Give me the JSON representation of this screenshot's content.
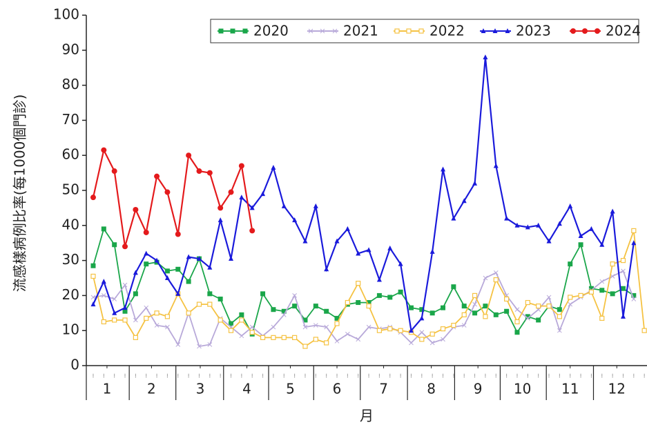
{
  "chart_data": {
    "type": "line",
    "y_label": "流感樣病例比率(每1000個門診)",
    "x_label": "月",
    "x": [
      1,
      2,
      3,
      4,
      5,
      6,
      7,
      8,
      9,
      10,
      11,
      12,
      13,
      14,
      15,
      16,
      17,
      18,
      19,
      20,
      21,
      22,
      23,
      24,
      25,
      26,
      27,
      28,
      29,
      30,
      31,
      32,
      33,
      34,
      35,
      36,
      37,
      38,
      39,
      40,
      41,
      42,
      43,
      44,
      45,
      46,
      47,
      48,
      49,
      50,
      51,
      52,
      53
    ],
    "xlim": [
      0.35,
      53.25
    ],
    "xticks": [
      {
        "value": 2.3,
        "label": "1"
      },
      {
        "value": 6.5,
        "label": "2"
      },
      {
        "value": 11.1,
        "label": "3"
      },
      {
        "value": 15.5,
        "label": "4"
      },
      {
        "value": 19.6,
        "label": "5"
      },
      {
        "value": 24.0,
        "label": "6"
      },
      {
        "value": 28.4,
        "label": "7"
      },
      {
        "value": 32.9,
        "label": "8"
      },
      {
        "value": 37.3,
        "label": "9"
      },
      {
        "value": 41.5,
        "label": "10"
      },
      {
        "value": 46.0,
        "label": "11"
      },
      {
        "value": 50.4,
        "label": "12"
      }
    ],
    "ylim": [
      0,
      100
    ],
    "yticks": [
      0,
      10,
      20,
      30,
      40,
      50,
      60,
      70,
      80,
      90,
      100
    ],
    "legend": "top-right",
    "series": [
      {
        "name": "2020",
        "color": "#1aa64a",
        "marker": "square",
        "values": [
          28.5,
          39,
          34.5,
          15.5,
          20.5,
          29,
          29.5,
          27,
          27.5,
          24,
          30.5,
          20.5,
          19,
          12,
          14.5,
          9,
          20.5,
          16,
          15.5,
          17,
          13,
          17,
          15.5,
          13.5,
          17.5,
          18,
          18,
          20,
          19.5,
          21,
          16.5,
          16,
          15,
          16.5,
          22.5,
          17,
          15,
          17,
          14.5,
          15.5,
          9.5,
          14,
          13,
          17,
          16,
          29,
          34.5,
          22,
          21.5,
          20.5,
          22,
          20,
          null
        ]
      },
      {
        "name": "2021",
        "color": "#b8a9d9",
        "marker": "cross",
        "values": [
          19.5,
          20,
          19,
          23,
          13,
          16.5,
          11.5,
          11,
          6,
          15,
          5.5,
          6,
          13.5,
          11,
          8.5,
          11,
          8.5,
          11,
          14.5,
          20,
          11,
          11.5,
          11,
          7,
          9,
          7.5,
          11,
          10.5,
          11,
          9.5,
          6.5,
          9.5,
          6.5,
          7.5,
          11,
          11.5,
          17.5,
          25,
          26.5,
          20,
          16,
          13.5,
          16,
          19.5,
          10,
          17.5,
          19.5,
          21.5,
          24,
          25.5,
          27,
          19,
          null
        ]
      },
      {
        "name": "2022",
        "color": "#f5c242",
        "marker": "open-square",
        "values": [
          25.5,
          12.5,
          13,
          13,
          8,
          13.5,
          15,
          14,
          20.5,
          15,
          17.5,
          17.5,
          13,
          10,
          13,
          9.5,
          8,
          8,
          8,
          8,
          5.5,
          7.5,
          6.5,
          12,
          18,
          23.5,
          17,
          10,
          10.5,
          10,
          9.5,
          7.5,
          9,
          10.5,
          11.5,
          14.5,
          20,
          14,
          24.5,
          19,
          12.5,
          18,
          17,
          17,
          14,
          19.5,
          20,
          21,
          13.5,
          29,
          30,
          38.5,
          10
        ]
      },
      {
        "name": "2023",
        "color": "#1a1adb",
        "marker": "triangle",
        "values": [
          17.5,
          24,
          15,
          16.5,
          26.5,
          32,
          30,
          25,
          20.5,
          31,
          30.5,
          28,
          41.5,
          30.5,
          48,
          45,
          49,
          56.5,
          45.5,
          41.5,
          35.5,
          45.5,
          27.5,
          35.5,
          39,
          32,
          33,
          24.5,
          33.5,
          29,
          10,
          13.5,
          32.5,
          56,
          42,
          47,
          52,
          88,
          57,
          42,
          40,
          39.5,
          40,
          35.5,
          40.5,
          45.5,
          37,
          39,
          34.5,
          44,
          14,
          35,
          null
        ]
      },
      {
        "name": "2024",
        "color": "#e41a1c",
        "marker": "circle",
        "values": [
          48,
          61.5,
          55.5,
          34,
          44.5,
          38,
          54,
          49.5,
          37.5,
          60,
          55.5,
          55,
          45,
          49.5,
          57,
          38.5,
          null,
          null,
          null,
          null,
          null,
          null,
          null,
          null,
          null,
          null,
          null,
          null,
          null,
          null,
          null,
          null,
          null,
          null,
          null,
          null,
          null,
          null,
          null,
          null,
          null,
          null,
          null,
          null,
          null,
          null,
          null,
          null,
          null,
          null,
          null,
          null,
          null
        ]
      }
    ]
  }
}
